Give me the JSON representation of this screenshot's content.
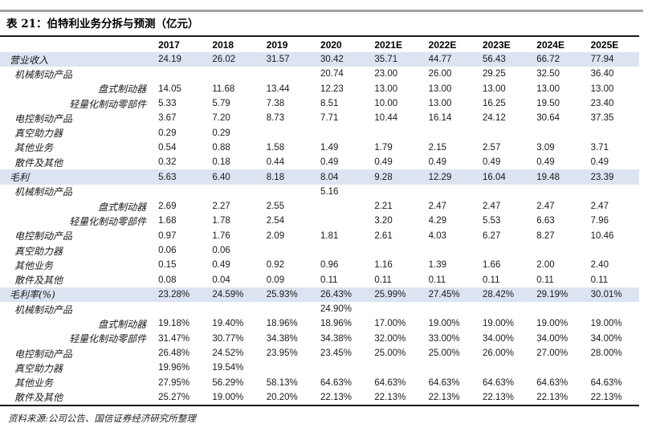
{
  "title": "表 21：伯特利业务分拆与预测（亿元）",
  "source": "资料来源:公司公告、国信证券经济研究所整理",
  "colors": {
    "highlight_row": "#dce4f2",
    "top_rule_gray": "#a2a2a2",
    "table_rule_black": "#1a1a1a",
    "text": "#1a1a1a"
  },
  "table": {
    "label_column_header": "",
    "columns": [
      "2017",
      "2018",
      "2019",
      "2020",
      "2021E",
      "2022E",
      "2023E",
      "2024E",
      "2025E"
    ],
    "rows": [
      {
        "label": "营业收入",
        "level": 0,
        "highlight": true,
        "values": [
          "24.19",
          "26.02",
          "31.57",
          "30.42",
          "35.71",
          "44.77",
          "56.43",
          "66.72",
          "77.94"
        ]
      },
      {
        "label": "机械制动产品",
        "level": 1,
        "highlight": false,
        "values": [
          "",
          "",
          "",
          "20.74",
          "23.00",
          "26.00",
          "29.25",
          "32.50",
          "36.40"
        ]
      },
      {
        "label": "盘式制动器",
        "level": 2,
        "highlight": false,
        "values": [
          "14.05",
          "11.68",
          "13.44",
          "12.23",
          "13.00",
          "13.00",
          "13.00",
          "13.00",
          "13.00"
        ]
      },
      {
        "label": "轻量化制动零部件",
        "level": 2,
        "highlight": false,
        "values": [
          "5.33",
          "5.79",
          "7.38",
          "8.51",
          "10.00",
          "13.00",
          "16.25",
          "19.50",
          "23.40"
        ]
      },
      {
        "label": "电控制动产品",
        "level": 1,
        "highlight": false,
        "values": [
          "3.67",
          "7.20",
          "8.73",
          "7.71",
          "10.44",
          "16.14",
          "24.12",
          "30.64",
          "37.35"
        ]
      },
      {
        "label": "真空助力器",
        "level": 1,
        "highlight": false,
        "values": [
          "0.29",
          "0.29",
          "",
          "",
          "",
          "",
          "",
          "",
          ""
        ]
      },
      {
        "label": "其他业务",
        "level": 1,
        "highlight": false,
        "values": [
          "0.54",
          "0.88",
          "1.58",
          "1.49",
          "1.79",
          "2.15",
          "2.57",
          "3.09",
          "3.71"
        ]
      },
      {
        "label": "散件及其他",
        "level": 1,
        "highlight": false,
        "values": [
          "0.32",
          "0.18",
          "0.44",
          "0.49",
          "0.49",
          "0.49",
          "0.49",
          "0.49",
          "0.49"
        ]
      },
      {
        "label": "毛利",
        "level": 0,
        "highlight": true,
        "values": [
          "5.63",
          "6.40",
          "8.18",
          "8.04",
          "9.28",
          "12.29",
          "16.04",
          "19.48",
          "23.39"
        ]
      },
      {
        "label": "机械制动产品",
        "level": 1,
        "highlight": false,
        "values": [
          "",
          "",
          "",
          "5.16",
          "",
          "",
          "",
          "",
          ""
        ]
      },
      {
        "label": "盘式制动器",
        "level": 2,
        "highlight": false,
        "values": [
          "2.69",
          "2.27",
          "2.55",
          "",
          "2.21",
          "2.47",
          "2.47",
          "2.47",
          "2.47"
        ]
      },
      {
        "label": "轻量化制动零部件",
        "level": 2,
        "highlight": false,
        "values": [
          "1.68",
          "1.78",
          "2.54",
          "",
          "3.20",
          "4.29",
          "5.53",
          "6.63",
          "7.96"
        ]
      },
      {
        "label": "电控制动产品",
        "level": 1,
        "highlight": false,
        "values": [
          "0.97",
          "1.76",
          "2.09",
          "1.81",
          "2.61",
          "4.03",
          "6.27",
          "8.27",
          "10.46"
        ]
      },
      {
        "label": "真空助力器",
        "level": 1,
        "highlight": false,
        "values": [
          "0.06",
          "0.06",
          "",
          "",
          "",
          "",
          "",
          "",
          ""
        ]
      },
      {
        "label": "其他业务",
        "level": 1,
        "highlight": false,
        "values": [
          "0.15",
          "0.49",
          "0.92",
          "0.96",
          "1.16",
          "1.39",
          "1.66",
          "2.00",
          "2.40"
        ]
      },
      {
        "label": "散件及其他",
        "level": 1,
        "highlight": false,
        "values": [
          "0.08",
          "0.04",
          "0.09",
          "0.11",
          "0.11",
          "0.11",
          "0.11",
          "0.11",
          "0.11"
        ]
      },
      {
        "label": "毛利率(%)",
        "level": 0,
        "highlight": true,
        "values": [
          "23.28%",
          "24.59%",
          "25.93%",
          "26.43%",
          "25.99%",
          "27.45%",
          "28.42%",
          "29.19%",
          "30.01%"
        ]
      },
      {
        "label": "机械制动产品",
        "level": 1,
        "highlight": false,
        "values": [
          "",
          "",
          "",
          "24.90%",
          "",
          "",
          "",
          "",
          ""
        ]
      },
      {
        "label": "盘式制动器",
        "level": 2,
        "highlight": false,
        "values": [
          "19.18%",
          "19.40%",
          "18.96%",
          "18.96%",
          "17.00%",
          "19.00%",
          "19.00%",
          "19.00%",
          "19.00%"
        ]
      },
      {
        "label": "轻量化制动零部件",
        "level": 2,
        "highlight": false,
        "values": [
          "31.47%",
          "30.77%",
          "34.38%",
          "34.38%",
          "32.00%",
          "33.00%",
          "34.00%",
          "34.00%",
          "34.00%"
        ]
      },
      {
        "label": "电控制动产品",
        "level": 1,
        "highlight": false,
        "values": [
          "26.48%",
          "24.52%",
          "23.95%",
          "23.45%",
          "25.00%",
          "25.00%",
          "26.00%",
          "27.00%",
          "28.00%"
        ]
      },
      {
        "label": "真空助力器",
        "level": 1,
        "highlight": false,
        "values": [
          "19.96%",
          "19.54%",
          "",
          "",
          "",
          "",
          "",
          "",
          ""
        ]
      },
      {
        "label": "其他业务",
        "level": 1,
        "highlight": false,
        "values": [
          "27.95%",
          "56.29%",
          "58.13%",
          "64.63%",
          "64.63%",
          "64.63%",
          "64.63%",
          "64.63%",
          "64.63%"
        ]
      },
      {
        "label": "散件及其他",
        "level": 1,
        "highlight": false,
        "values": [
          "25.27%",
          "19.00%",
          "20.20%",
          "22.13%",
          "22.13%",
          "22.13%",
          "22.13%",
          "22.13%",
          "22.13%"
        ]
      }
    ]
  }
}
